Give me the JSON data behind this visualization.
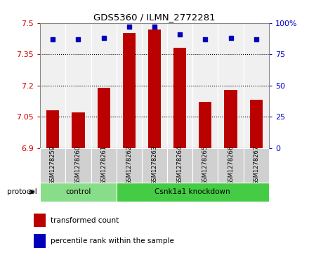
{
  "title": "GDS5360 / ILMN_2772281",
  "samples": [
    "GSM1278259",
    "GSM1278260",
    "GSM1278261",
    "GSM1278262",
    "GSM1278263",
    "GSM1278264",
    "GSM1278265",
    "GSM1278266",
    "GSM1278267"
  ],
  "bar_values": [
    7.08,
    7.07,
    7.19,
    7.45,
    7.47,
    7.38,
    7.12,
    7.18,
    7.13
  ],
  "percentile_values": [
    87,
    87,
    88,
    97,
    97,
    91,
    87,
    88,
    87
  ],
  "y_min": 6.9,
  "y_max": 7.5,
  "y_ticks": [
    6.9,
    7.05,
    7.2,
    7.35,
    7.5
  ],
  "y2_ticks": [
    0,
    25,
    50,
    75,
    100
  ],
  "bar_color": "#bb0000",
  "dot_color": "#0000bb",
  "groups": [
    {
      "label": "control",
      "start": 0,
      "end": 3,
      "color": "#88dd88"
    },
    {
      "label": "Csnk1a1 knockdown",
      "start": 3,
      "end": 9,
      "color": "#44cc44"
    }
  ],
  "protocol_label": "protocol",
  "legend_bar_label": "transformed count",
  "legend_dot_label": "percentile rank within the sample",
  "background_color": "#ffffff",
  "plot_bg_color": "#f0f0f0",
  "axis_label_color_left": "#cc0000",
  "axis_label_color_right": "#0000cc",
  "sample_box_color": "#d0d0d0",
  "border_color": "#888888"
}
